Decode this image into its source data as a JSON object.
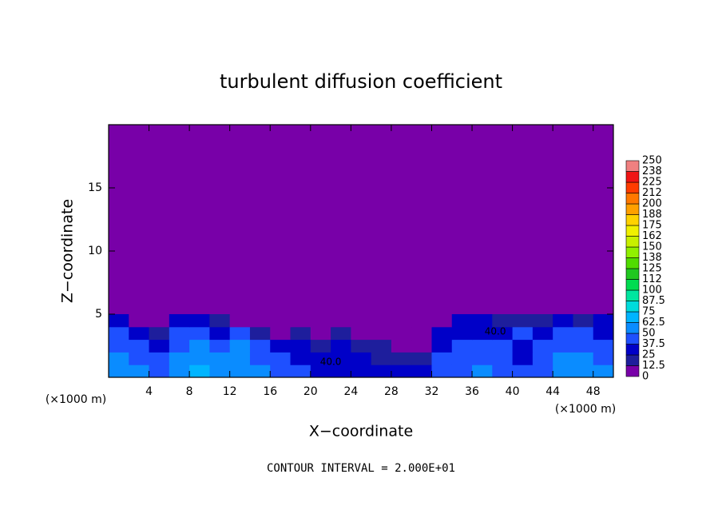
{
  "chart_data": {
    "type": "contour",
    "title": "turbulent diffusion coefficient",
    "xlabel": "X−coordinate",
    "ylabel": "Z−coordinate",
    "x_units": "(×1000 m)",
    "y_units": "(×1000 m)",
    "footer": "CONTOUR INTERVAL = 2.000E+01",
    "xlim": [
      0,
      50
    ],
    "ylim": [
      0,
      20
    ],
    "xticks": [
      4,
      8,
      12,
      16,
      20,
      24,
      28,
      32,
      36,
      40,
      44,
      48
    ],
    "yticks": [
      5,
      10,
      15
    ],
    "x": [
      1,
      3,
      5,
      7,
      9,
      11,
      13,
      15,
      17,
      19,
      21,
      23,
      25,
      27,
      29,
      31,
      33,
      35,
      37,
      39,
      41,
      43,
      45,
      47,
      49
    ],
    "y": [
      0.5,
      1.5,
      2.5,
      3.5,
      4.5
    ],
    "z": [
      [
        60,
        50,
        45,
        55,
        65,
        60,
        55,
        60,
        45,
        40,
        35,
        30,
        35,
        30,
        30,
        25,
        40,
        45,
        50,
        45,
        40,
        40,
        55,
        60,
        50
      ],
      [
        55,
        45,
        40,
        50,
        55,
        50,
        50,
        45,
        40,
        35,
        30,
        30,
        25,
        20,
        15,
        20,
        40,
        45,
        45,
        40,
        35,
        45,
        50,
        55,
        45
      ],
      [
        45,
        40,
        35,
        45,
        50,
        45,
        55,
        40,
        30,
        25,
        20,
        25,
        20,
        15,
        10,
        10,
        35,
        40,
        40,
        40,
        35,
        40,
        45,
        45,
        40
      ],
      [
        40,
        30,
        20,
        40,
        40,
        35,
        45,
        20,
        10,
        15,
        10,
        15,
        10,
        5,
        5,
        5,
        30,
        35,
        35,
        35,
        40,
        30,
        45,
        40,
        35
      ],
      [
        30,
        10,
        5,
        25,
        30,
        20,
        10,
        5,
        5,
        5,
        5,
        5,
        5,
        5,
        5,
        5,
        10,
        25,
        25,
        20,
        15,
        20,
        25,
        20,
        25
      ]
    ],
    "contour_labels": [
      "40.0",
      "40.0"
    ],
    "colorbar": {
      "levels": [
        0,
        12.5,
        25,
        37.5,
        50,
        62.5,
        75,
        87.5,
        100,
        112,
        125,
        138,
        150,
        162,
        175,
        188,
        200,
        212,
        225,
        238,
        250
      ],
      "colors": [
        "#7800a8",
        "#1e1e9c",
        "#0000c8",
        "#1e50ff",
        "#0a8cff",
        "#00b4ff",
        "#00dcdc",
        "#00e6a0",
        "#00dc50",
        "#20c820",
        "#50dc00",
        "#90f000",
        "#c8f000",
        "#f0f000",
        "#ffd200",
        "#ffa000",
        "#ff7800",
        "#ff3c00",
        "#f01414",
        "#f08080"
      ]
    }
  }
}
